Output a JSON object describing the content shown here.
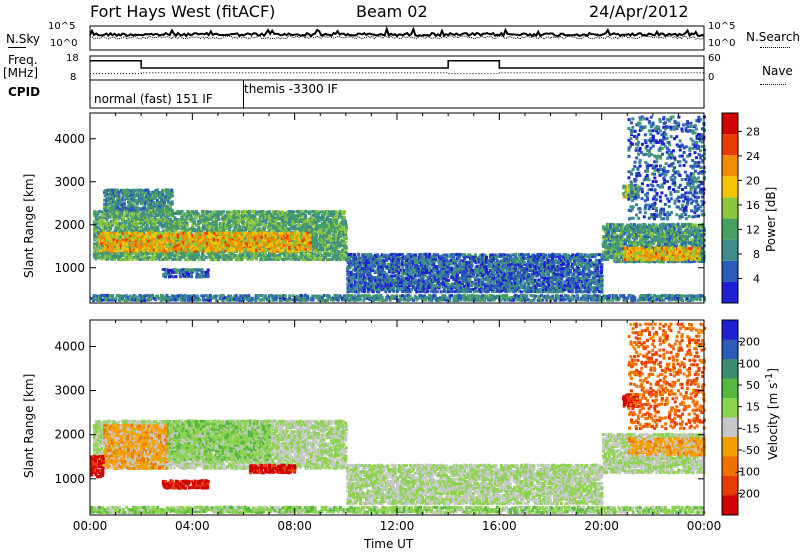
{
  "header": {
    "station": "Fort Hays West (fitACF)",
    "beam": "Beam 02",
    "date": "24/Apr/2012"
  },
  "noise_panel": {
    "left_label": "N.Sky",
    "right_label": "N.Search",
    "left_ticks": [
      "10^5",
      "10^0"
    ],
    "right_ticks": [
      "10^5",
      "10^0"
    ]
  },
  "freq_panel": {
    "left_label_line1": "Freq.",
    "left_label_line2": "[MHz]",
    "left_ticks": [
      "18",
      "8"
    ],
    "right_label": "Nave",
    "right_ticks": [
      "60",
      "0"
    ],
    "freq_mhz": [
      {
        "start_h": 0,
        "end_h": 2.0,
        "value": 16.0
      },
      {
        "start_h": 2.0,
        "end_h": 14.0,
        "value": 13.0
      },
      {
        "start_h": 14.0,
        "end_h": 16.0,
        "value": 16.0
      },
      {
        "start_h": 16.0,
        "end_h": 24.0,
        "value": 13.0
      }
    ],
    "nave": [
      {
        "start_h": 0,
        "end_h": 2.0,
        "value": 16
      },
      {
        "start_h": 2.0,
        "end_h": 14.0,
        "value": 18
      },
      {
        "start_h": 14.0,
        "end_h": 16.0,
        "value": 16
      },
      {
        "start_h": 16.0,
        "end_h": 24.0,
        "value": 18
      }
    ]
  },
  "cpid": {
    "label": "CPID",
    "modes": [
      {
        "start_h": 0,
        "end_h": 6.0,
        "text": "normal (fast) 151 IF"
      },
      {
        "start_h": 6.0,
        "end_h": 24.0,
        "text": "themis -3300 IF"
      }
    ]
  },
  "chart_data": [
    {
      "type": "heatmap",
      "name": "power",
      "ylabel": "Slant Range [km]",
      "yticks": [
        1000,
        2000,
        3000,
        4000
      ],
      "ylim": [
        180,
        4600
      ],
      "xlim_hours": [
        0,
        24
      ],
      "colorbar": {
        "label": "Power [dB]",
        "ticks": [
          4,
          8,
          12,
          16,
          20,
          24,
          28
        ],
        "range": [
          0,
          31
        ],
        "colors": [
          "#1e1ed2",
          "#2b5ab8",
          "#3e8c8c",
          "#47a061",
          "#8cc63f",
          "#f5c400",
          "#f08c00",
          "#e83c00",
          "#d10000"
        ]
      },
      "regions": [
        {
          "t0": 0.1,
          "t1": 10.0,
          "r0": 1150,
          "r1": 2300,
          "value": 12
        },
        {
          "t0": 0.3,
          "t1": 8.6,
          "r0": 1350,
          "r1": 1800,
          "value": 20
        },
        {
          "t0": 2.8,
          "t1": 4.6,
          "r0": 750,
          "r1": 950,
          "value": 6
        },
        {
          "t0": 0.5,
          "t1": 3.2,
          "r0": 2300,
          "r1": 2800,
          "value": 9
        },
        {
          "t0": 20.0,
          "t1": 24.0,
          "r0": 1100,
          "r1": 2000,
          "value": 10
        },
        {
          "t0": 20.8,
          "t1": 23.8,
          "r0": 1150,
          "r1": 1450,
          "value": 20
        },
        {
          "t0": 20.8,
          "t1": 21.4,
          "r0": 2600,
          "r1": 2900,
          "value": 14
        },
        {
          "t0": 21.0,
          "t1": 24.0,
          "r0": 2100,
          "r1": 4500,
          "value": 6
        },
        {
          "t0": 0.0,
          "t1": 24.0,
          "r0": 200,
          "r1": 350,
          "value": 8
        },
        {
          "t0": 10.0,
          "t1": 20.0,
          "r0": 400,
          "r1": 1300,
          "value": 6
        }
      ]
    },
    {
      "type": "heatmap",
      "name": "velocity",
      "ylabel": "Slant Range [km]",
      "yticks": [
        1000,
        2000,
        3000,
        4000
      ],
      "ylim": [
        180,
        4600
      ],
      "xlim_hours": [
        0,
        24
      ],
      "colorbar": {
        "label": "Velocity [m s^-1]",
        "ticks": [
          "200",
          "100",
          "50",
          "15",
          "-15",
          "-50",
          "-100",
          "-200"
        ],
        "range": [
          -250,
          250
        ],
        "colors": [
          "#1e1ed2",
          "#2b5ab8",
          "#3d8c6f",
          "#56b840",
          "#8cd44f",
          "#c8c8c8",
          "#f5a000",
          "#f07000",
          "#e83c00",
          "#d10000"
        ]
      },
      "regions": [
        {
          "t0": 0.1,
          "t1": 10.0,
          "r0": 1200,
          "r1": 2300,
          "value": 0
        },
        {
          "t0": 0.5,
          "t1": 3.0,
          "r0": 1200,
          "r1": 2200,
          "value": -70
        },
        {
          "t0": 3.0,
          "t1": 7.0,
          "r0": 1400,
          "r1": 2300,
          "value": 30
        },
        {
          "t0": 6.2,
          "t1": 8.0,
          "r0": 1100,
          "r1": 1300,
          "value": -220
        },
        {
          "t0": 2.8,
          "t1": 4.6,
          "r0": 750,
          "r1": 950,
          "value": -220
        },
        {
          "t0": 0.0,
          "t1": 0.5,
          "r0": 1000,
          "r1": 1500,
          "value": -220
        },
        {
          "t0": 20.0,
          "t1": 24.0,
          "r0": 1100,
          "r1": 2000,
          "value": 0
        },
        {
          "t0": 21.0,
          "t1": 24.0,
          "r0": 1500,
          "r1": 1900,
          "value": -70
        },
        {
          "t0": 20.8,
          "t1": 21.4,
          "r0": 2600,
          "r1": 2900,
          "value": -220
        },
        {
          "t0": 21.0,
          "t1": 24.0,
          "r0": 2100,
          "r1": 4500,
          "value": -140
        },
        {
          "t0": 0.0,
          "t1": 24.0,
          "r0": 200,
          "r1": 350,
          "value": 30
        },
        {
          "t0": 10.0,
          "t1": 20.0,
          "r0": 400,
          "r1": 1300,
          "value": 0
        }
      ]
    }
  ],
  "time_axis": {
    "ticks": [
      "00:00",
      "04:00",
      "08:00",
      "12:00",
      "16:00",
      "20:00",
      "00:00"
    ],
    "label": "Time UT"
  }
}
